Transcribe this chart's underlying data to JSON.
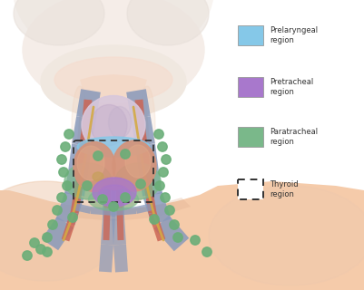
{
  "bg_color": "#FFFFFF",
  "head_color": "#F0E8E0",
  "head_hair": "#E8E0D8",
  "skin_light": "#F5DDD0",
  "skin_mid": "#EEC9AD",
  "skin_dark": "#E0B090",
  "neck_color": "#F0D0B8",
  "chest_color": "#F5CBAA",
  "larynx_color": "#D8C8DC",
  "larynx_shadow": "#C0A8C8",
  "thyroid_color": "#D4937A",
  "thyroid_light": "#E0A888",
  "thyroid_shadow": "#C07860",
  "prelaryngeal_color": "#85C8E8",
  "pretracheal_color": "#A878CC",
  "paratracheal_color": "#7AB88A",
  "vein_color": "#8899BB",
  "vein_dark": "#6070A0",
  "artery_color": "#CC6655",
  "artery_dark": "#AA4440",
  "nerve_color": "#D4AA44",
  "lymph_color": "#6AAE78",
  "lymph_edge": "#4A8A58",
  "dashed_color": "#333333",
  "legend_items": [
    {
      "label": "Prelaryngeal\nregion",
      "color": "#85C8E8",
      "style": "solid"
    },
    {
      "label": "Pretracheal\nregion",
      "color": "#A878CC",
      "style": "solid"
    },
    {
      "label": "Paratracheal\nregion",
      "color": "#7AB88A",
      "style": "solid"
    },
    {
      "label": "Thyroid\nregion",
      "color": "#FFFFFF",
      "style": "dashed"
    }
  ]
}
